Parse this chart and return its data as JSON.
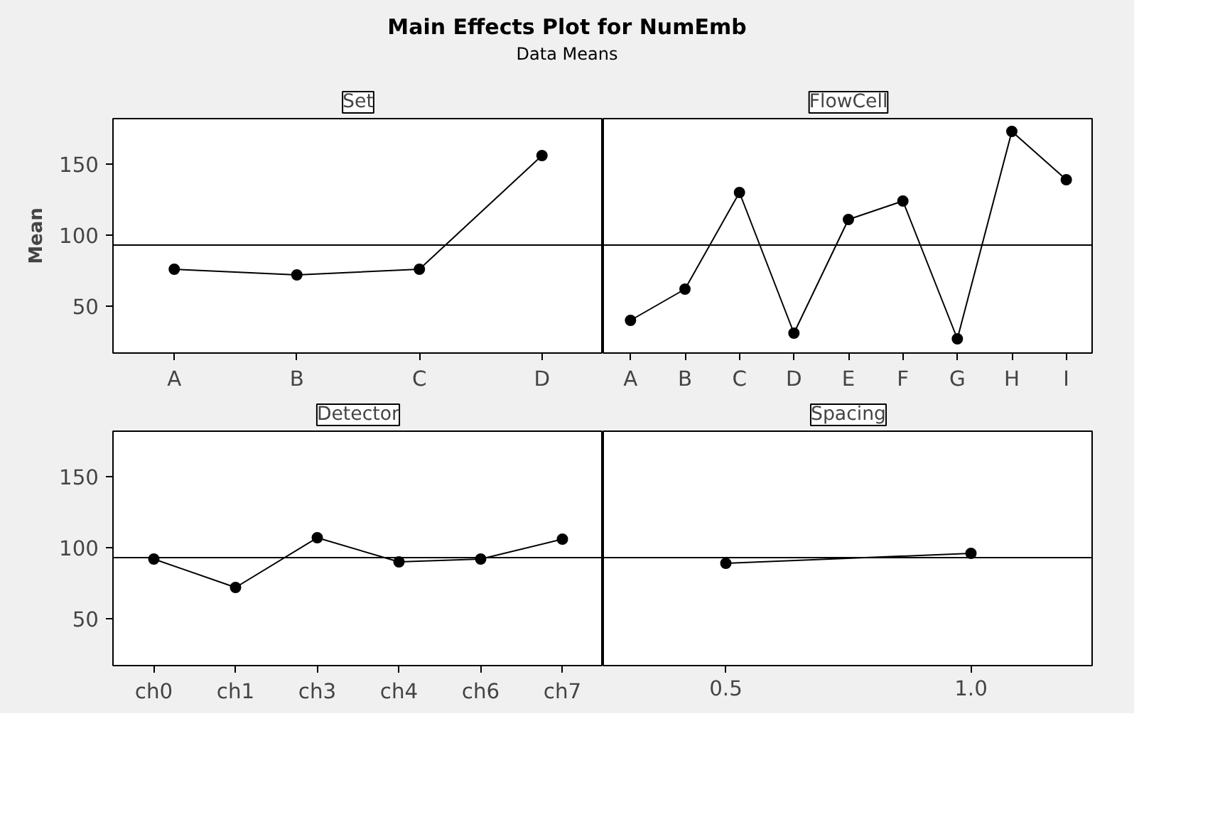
{
  "chart_data": [
    {
      "type": "line",
      "title": "Set",
      "annotations": [
        "Main Effects Plot for NumEmb",
        "Data Means"
      ],
      "ylabel": "Mean",
      "categories": [
        "A",
        "B",
        "C",
        "D"
      ],
      "values": [
        76,
        72,
        76,
        156
      ],
      "color": "#000000",
      "marker": "circle",
      "ylim": [
        17,
        182
      ],
      "yticks": [
        50,
        100,
        150
      ],
      "ref_lines": [
        {
          "axis": "y",
          "value": 93,
          "color": "#000000"
        }
      ],
      "grid": false
    },
    {
      "type": "line",
      "title": "FlowCell",
      "categories": [
        "A",
        "B",
        "C",
        "D",
        "E",
        "F",
        "G",
        "H",
        "I"
      ],
      "values": [
        40,
        62,
        130,
        31,
        111,
        124,
        27,
        173,
        139
      ],
      "color": "#000000",
      "marker": "circle",
      "ylim": [
        17,
        182
      ],
      "yticks": [
        50,
        100,
        150
      ],
      "tick_labels": "x",
      "ref_lines": [
        {
          "axis": "y",
          "value": 93,
          "color": "#000000"
        }
      ],
      "grid": false
    },
    {
      "type": "line",
      "title": "Detector",
      "categories": [
        "ch0",
        "ch1",
        "ch3",
        "ch4",
        "ch6",
        "ch7"
      ],
      "values": [
        92,
        72,
        107,
        90,
        92,
        106
      ],
      "color": "#000000",
      "marker": "circle",
      "ylim": [
        17,
        182
      ],
      "yticks": [
        50,
        100,
        150
      ],
      "ref_lines": [
        {
          "axis": "y",
          "value": 93,
          "color": "#000000"
        }
      ],
      "grid": false
    },
    {
      "type": "line",
      "title": "Spacing",
      "x": [
        0.5,
        1.0
      ],
      "values": [
        89,
        96
      ],
      "color": "#000000",
      "marker": "circle",
      "xlim": [
        0.25,
        1.25
      ],
      "xticks": [
        {
          "value": 0.5,
          "label": "0.5"
        },
        {
          "value": 1.0,
          "label": "1.0"
        }
      ],
      "ylim": [
        17,
        182
      ],
      "yticks": [
        50,
        100,
        150
      ],
      "tick_labels": "x",
      "ref_lines": [
        {
          "axis": "y",
          "value": 93,
          "color": "#000000"
        }
      ],
      "grid": false
    }
  ]
}
